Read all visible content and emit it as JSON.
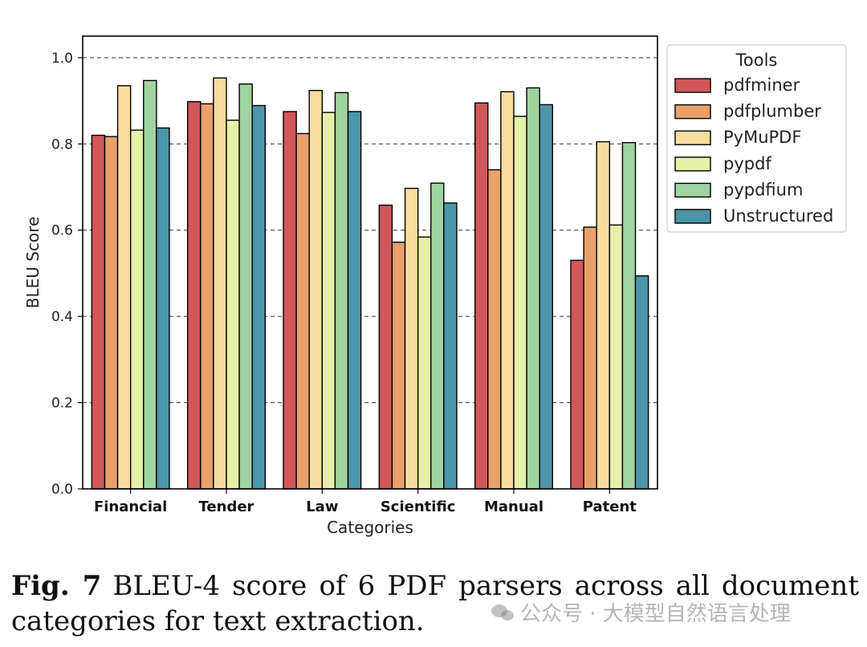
{
  "chart_data": {
    "type": "bar",
    "xlabel": "Categories",
    "ylabel": "BLEU Score",
    "ylim": [
      0.0,
      1.05
    ],
    "yticks": [
      "0.0",
      "0.2",
      "0.4",
      "0.6",
      "0.8",
      "1.0"
    ],
    "grid": "horizontal dashed",
    "legend_title": "Tools",
    "legend_position": "outside-right-top",
    "categories": [
      "Financial",
      "Tender",
      "Law",
      "Scientific",
      "Manual",
      "Patent"
    ],
    "series": [
      {
        "name": "pdfminer",
        "color": "#d1575a",
        "values": [
          0.82,
          0.898,
          0.875,
          0.658,
          0.895,
          0.53
        ]
      },
      {
        "name": "pdfplumber",
        "color": "#e9a06a",
        "values": [
          0.817,
          0.893,
          0.824,
          0.572,
          0.74,
          0.607
        ]
      },
      {
        "name": "PyMuPDF",
        "color": "#f6dd9d",
        "values": [
          0.935,
          0.953,
          0.924,
          0.697,
          0.921,
          0.805
        ]
      },
      {
        "name": "pypdf",
        "color": "#e6f0a9",
        "values": [
          0.832,
          0.855,
          0.873,
          0.584,
          0.864,
          0.612
        ]
      },
      {
        "name": "pypdfium",
        "color": "#a1d2a2",
        "values": [
          0.947,
          0.939,
          0.919,
          0.709,
          0.93,
          0.803
        ]
      },
      {
        "name": "Unstructured",
        "color": "#4b96a8",
        "values": [
          0.837,
          0.889,
          0.875,
          0.663,
          0.891,
          0.494
        ]
      }
    ]
  },
  "caption": {
    "label": "Fig. 7",
    "text": "BLEU-4 score of 6 PDF parsers across all document categories for text extraction."
  },
  "watermark": {
    "text": "公众号 · 大模型自然语言处理",
    "icon": "wechat-icon"
  }
}
